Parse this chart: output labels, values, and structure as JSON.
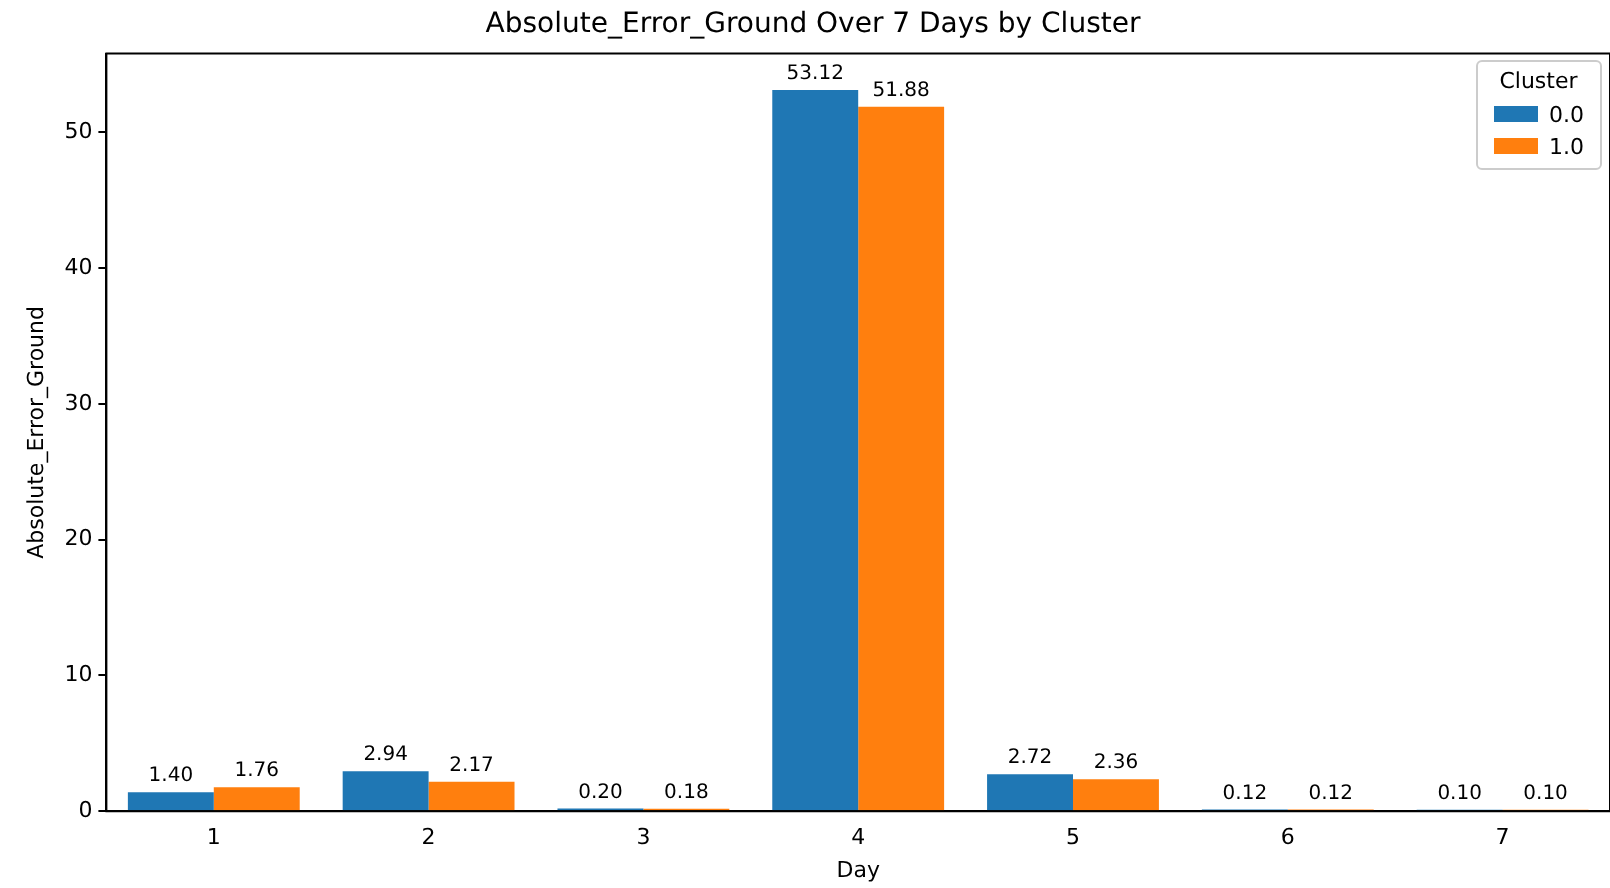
{
  "chart_data": {
    "type": "bar",
    "title": "Absolute_Error_Ground Over 7 Days by Cluster",
    "xlabel": "Day",
    "ylabel": "Absolute_Error_Ground",
    "legend_title": "Cluster",
    "categories": [
      "1",
      "2",
      "3",
      "4",
      "5",
      "6",
      "7"
    ],
    "series": [
      {
        "name": "0.0",
        "color": "#1f77b4",
        "values": [
          1.4,
          2.94,
          0.2,
          53.12,
          2.72,
          0.12,
          0.1
        ],
        "value_labels": [
          "1.40",
          "2.94",
          "0.20",
          "53.12",
          "2.72",
          "0.12",
          "0.10"
        ]
      },
      {
        "name": "1.0",
        "color": "#ff7f0e",
        "values": [
          1.76,
          2.17,
          0.18,
          51.88,
          2.36,
          0.12,
          0.1
        ],
        "value_labels": [
          "1.76",
          "2.17",
          "0.18",
          "51.88",
          "2.36",
          "0.12",
          "0.10"
        ]
      }
    ],
    "ylim": [
      0,
      55.8
    ],
    "yticks": [
      0,
      10,
      20,
      30,
      40,
      50
    ],
    "grid": false,
    "legend": "top right"
  }
}
